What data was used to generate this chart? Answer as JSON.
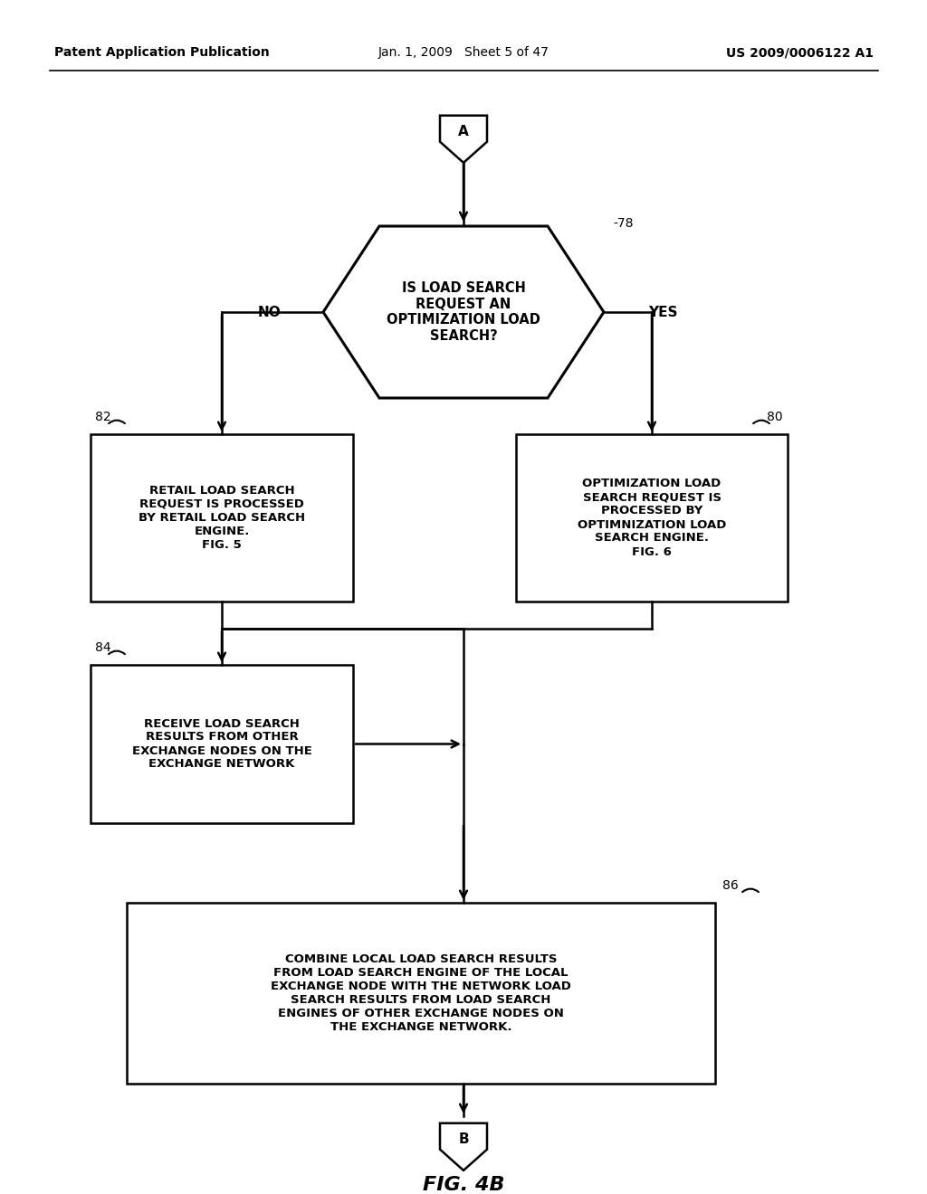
{
  "background_color": "#ffffff",
  "header_left": "Patent Application Publication",
  "header_mid": "Jan. 1, 2009   Sheet 5 of 47",
  "header_right": "US 2009/0006122 A1",
  "fig_label": "FIG. 4B",
  "connector_A_label": "A",
  "connector_B_label": "B",
  "diamond_label": "IS LOAD SEARCH\nREQUEST AN\nOPTIMIZATION LOAD\nSEARCH?",
  "diamond_ref": "-78",
  "no_label": "NO",
  "yes_label": "YES",
  "box82_ref": "82",
  "box82_text": "RETAIL LOAD SEARCH\nREQUEST IS PROCESSED\nBY RETAIL LOAD SEARCH\nENGINE.\nFIG. 5",
  "box80_ref": "80",
  "box80_text": "OPTIMIZATION LOAD\nSEARCH REQUEST IS\nPROCESSED BY\nOPTIMNIZATION LOAD\nSEARCH ENGINE.\nFIG. 6",
  "box84_ref": "84",
  "box84_text": "RECEIVE LOAD SEARCH\nRESULTS FROM OTHER\nEXCHANGE NODES ON THE\nEXCHANGE NETWORK",
  "box86_ref": "86",
  "box86_text": "COMBINE LOCAL LOAD SEARCH RESULTS\nFROM LOAD SEARCH ENGINE OF THE LOCAL\nEXCHANGE NODE WITH THE NETWORK LOAD\nSEARCH RESULTS FROM LOAD SEARCH\nENGINES OF OTHER EXCHANGE NODES ON\nTHE EXCHANGE NETWORK."
}
